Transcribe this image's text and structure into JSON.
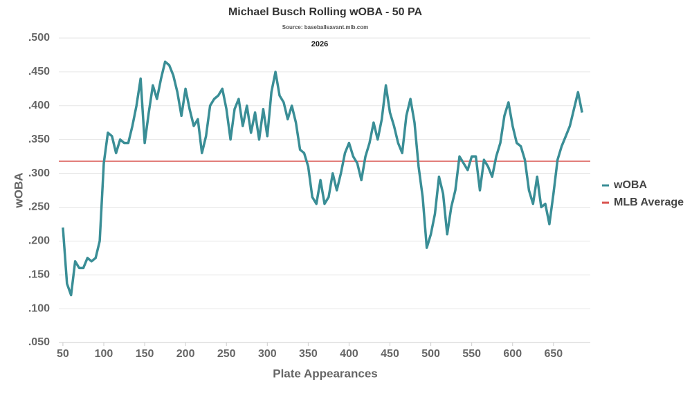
{
  "chart_data": {
    "type": "line",
    "title": "Michael Busch Rolling wOBA - 50 PA",
    "subtitle": "Source: baseballsavant.mlb.com",
    "annotation": "2026",
    "x_label": "Plate Appearances",
    "y_label": "wOBA",
    "xlim": [
      45,
      695
    ],
    "ylim": [
      0.05,
      0.5
    ],
    "xticks": [
      50,
      100,
      150,
      200,
      250,
      300,
      350,
      400,
      450,
      500,
      550,
      600,
      650
    ],
    "yticks": [
      {
        "value": 0.05,
        "label": ".050"
      },
      {
        "value": 0.1,
        "label": ".100"
      },
      {
        "value": 0.15,
        "label": ".150"
      },
      {
        "value": 0.2,
        "label": ".200"
      },
      {
        "value": 0.25,
        "label": ".250"
      },
      {
        "value": 0.3,
        "label": ".300"
      },
      {
        "value": 0.35,
        "label": ".350"
      },
      {
        "value": 0.4,
        "label": ".400"
      },
      {
        "value": 0.45,
        "label": ".450"
      },
      {
        "value": 0.5,
        "label": ".500"
      }
    ],
    "grid": true,
    "legend": "right",
    "x": [
      50,
      55,
      60,
      65,
      70,
      75,
      80,
      85,
      90,
      95,
      100,
      105,
      110,
      115,
      120,
      125,
      130,
      135,
      140,
      145,
      150,
      155,
      160,
      165,
      170,
      175,
      180,
      185,
      190,
      195,
      200,
      205,
      210,
      215,
      220,
      225,
      230,
      235,
      240,
      245,
      250,
      255,
      260,
      265,
      270,
      275,
      280,
      285,
      290,
      295,
      300,
      305,
      310,
      315,
      320,
      325,
      330,
      335,
      340,
      345,
      350,
      355,
      360,
      365,
      370,
      375,
      380,
      385,
      390,
      395,
      400,
      405,
      410,
      415,
      420,
      425,
      430,
      435,
      440,
      445,
      450,
      455,
      460,
      465,
      470,
      475,
      480,
      485,
      490,
      495,
      500,
      505,
      510,
      515,
      520,
      525,
      530,
      535,
      540,
      545,
      550,
      555,
      560,
      565,
      570,
      575,
      580,
      585,
      590,
      595,
      600,
      605,
      610,
      615,
      620,
      625,
      630,
      635,
      640,
      645,
      650,
      655,
      660,
      665,
      670,
      675,
      680,
      685
    ],
    "series": [
      {
        "name": "wOBA",
        "color": "#3a8e96",
        "values": [
          0.22,
          0.137,
          0.12,
          0.17,
          0.16,
          0.16,
          0.175,
          0.17,
          0.175,
          0.2,
          0.315,
          0.36,
          0.355,
          0.33,
          0.35,
          0.345,
          0.345,
          0.37,
          0.4,
          0.44,
          0.345,
          0.39,
          0.43,
          0.41,
          0.44,
          0.465,
          0.46,
          0.445,
          0.42,
          0.385,
          0.425,
          0.395,
          0.37,
          0.38,
          0.33,
          0.355,
          0.4,
          0.41,
          0.415,
          0.425,
          0.395,
          0.35,
          0.395,
          0.41,
          0.37,
          0.4,
          0.36,
          0.39,
          0.35,
          0.395,
          0.355,
          0.42,
          0.45,
          0.415,
          0.405,
          0.38,
          0.4,
          0.375,
          0.335,
          0.33,
          0.31,
          0.265,
          0.255,
          0.29,
          0.255,
          0.265,
          0.3,
          0.275,
          0.3,
          0.33,
          0.345,
          0.325,
          0.315,
          0.29,
          0.325,
          0.345,
          0.375,
          0.35,
          0.38,
          0.43,
          0.39,
          0.37,
          0.345,
          0.33,
          0.385,
          0.41,
          0.375,
          0.31,
          0.265,
          0.19,
          0.21,
          0.24,
          0.295,
          0.27,
          0.21,
          0.25,
          0.275,
          0.325,
          0.315,
          0.305,
          0.325,
          0.325,
          0.275,
          0.32,
          0.31,
          0.295,
          0.325,
          0.345,
          0.385,
          0.405,
          0.37,
          0.345,
          0.34,
          0.32,
          0.275,
          0.255,
          0.295,
          0.25,
          0.255,
          0.225,
          0.27,
          0.32,
          0.34,
          0.355,
          0.37,
          0.395,
          0.42,
          0.39
        ]
      }
    ],
    "reference_lines": [
      {
        "name": "MLB Average",
        "value": 0.318,
        "color": "#d9534f"
      }
    ]
  }
}
